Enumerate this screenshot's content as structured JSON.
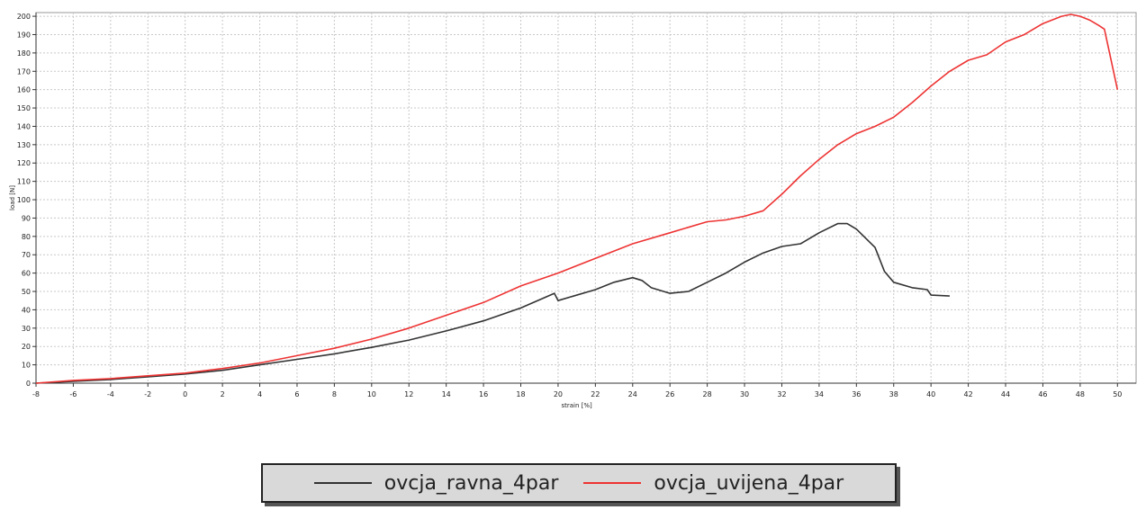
{
  "chart_data": {
    "type": "line",
    "title": "",
    "xlabel": "strain [%]",
    "ylabel": "load [N]",
    "xlim": [
      -8,
      51
    ],
    "ylim": [
      0,
      202
    ],
    "xticks": [
      -8,
      -6,
      -4,
      -2,
      0,
      2,
      4,
      6,
      8,
      10,
      12,
      14,
      16,
      18,
      20,
      22,
      24,
      26,
      28,
      30,
      32,
      34,
      36,
      38,
      40,
      42,
      44,
      46,
      48,
      50
    ],
    "xtick_labels": [
      "-8",
      "-6",
      "-4",
      "-2",
      "0",
      "2",
      "4",
      "6",
      "8",
      "10",
      "12",
      "14",
      "16",
      "18",
      "20",
      "22",
      "24",
      "26",
      "28",
      "30",
      "32",
      "34",
      "36",
      "38",
      "40",
      "42",
      "44",
      "46",
      "48",
      "50"
    ],
    "yticks": [
      0,
      10,
      20,
      30,
      40,
      50,
      60,
      70,
      80,
      90,
      100,
      110,
      120,
      130,
      140,
      150,
      160,
      170,
      180,
      190,
      200
    ],
    "grid": true,
    "legend_position": "bottom-center",
    "series": [
      {
        "name": "ovcja_ravna_4par",
        "color": "#333333",
        "points": [
          [
            -8,
            0
          ],
          [
            -6,
            1
          ],
          [
            -4,
            2
          ],
          [
            -2,
            3.5
          ],
          [
            0,
            5
          ],
          [
            2,
            7
          ],
          [
            4,
            10
          ],
          [
            6,
            13
          ],
          [
            8,
            16
          ],
          [
            10,
            19.5
          ],
          [
            12,
            23.5
          ],
          [
            14,
            28.5
          ],
          [
            16,
            34
          ],
          [
            18,
            41
          ],
          [
            19.8,
            49
          ],
          [
            20,
            45
          ],
          [
            22,
            51
          ],
          [
            23,
            55
          ],
          [
            24,
            57.5
          ],
          [
            24.5,
            56
          ],
          [
            25,
            52
          ],
          [
            26,
            49
          ],
          [
            27,
            50
          ],
          [
            28,
            55
          ],
          [
            29,
            60
          ],
          [
            30,
            66
          ],
          [
            31,
            71
          ],
          [
            32,
            74.5
          ],
          [
            33,
            76
          ],
          [
            34,
            82
          ],
          [
            35,
            87
          ],
          [
            35.5,
            87
          ],
          [
            36,
            84
          ],
          [
            37,
            74
          ],
          [
            37.5,
            61
          ],
          [
            38,
            55
          ],
          [
            39,
            52
          ],
          [
            39.8,
            51
          ],
          [
            40,
            48
          ],
          [
            41,
            47.5
          ]
        ]
      },
      {
        "name": "ovcja_uvijena_4par",
        "color": "#ee3333",
        "points": [
          [
            -8,
            0
          ],
          [
            -6,
            1.5
          ],
          [
            -4,
            2.5
          ],
          [
            -2,
            4
          ],
          [
            0,
            5.5
          ],
          [
            2,
            8
          ],
          [
            4,
            11
          ],
          [
            6,
            15
          ],
          [
            8,
            19
          ],
          [
            10,
            24
          ],
          [
            12,
            30
          ],
          [
            14,
            37
          ],
          [
            16,
            44
          ],
          [
            18,
            53
          ],
          [
            20,
            60
          ],
          [
            22,
            68
          ],
          [
            24,
            76
          ],
          [
            26,
            82
          ],
          [
            28,
            88
          ],
          [
            29,
            89
          ],
          [
            30,
            91
          ],
          [
            31,
            94
          ],
          [
            32,
            103
          ],
          [
            33,
            113
          ],
          [
            34,
            122
          ],
          [
            35,
            130
          ],
          [
            36,
            136
          ],
          [
            37,
            140
          ],
          [
            38,
            145
          ],
          [
            39,
            153
          ],
          [
            40,
            162
          ],
          [
            41,
            170
          ],
          [
            42,
            176
          ],
          [
            43,
            179
          ],
          [
            44,
            186
          ],
          [
            45,
            190
          ],
          [
            46,
            196
          ],
          [
            47,
            200
          ],
          [
            47.5,
            201
          ],
          [
            48,
            200
          ],
          [
            48.5,
            198
          ],
          [
            49,
            195
          ],
          [
            49.3,
            193
          ],
          [
            50,
            160
          ]
        ]
      }
    ]
  },
  "legend": {
    "entries": [
      {
        "label": "ovcja_ravna_4par",
        "color": "#333333"
      },
      {
        "label": "ovcja_uvijena_4par",
        "color": "#ee3333"
      }
    ]
  }
}
